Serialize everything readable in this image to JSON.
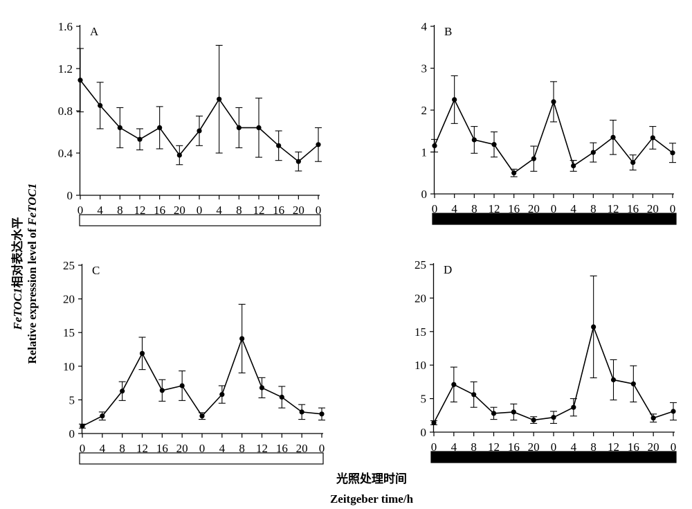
{
  "figure": {
    "ylabel_line1_italic": "FeTOC1",
    "ylabel_line1_cn": "相对表达水平",
    "ylabel_line2_prefix": "Relative expression level of ",
    "ylabel_line2_italic": "FeTOC1",
    "xlabel_cn": "光照处理时间",
    "xlabel_en": "Zeitgeber time/h"
  },
  "chart_data": [
    {
      "type": "line",
      "panel": "A",
      "x": [
        "0",
        "4",
        "8",
        "12",
        "16",
        "20",
        "0",
        "4",
        "8",
        "12",
        "16",
        "20",
        "0"
      ],
      "values": [
        1.09,
        0.85,
        0.64,
        0.53,
        0.64,
        0.38,
        0.61,
        0.91,
        0.64,
        0.64,
        0.47,
        0.32,
        0.48
      ],
      "error": [
        0.3,
        0.22,
        0.19,
        0.1,
        0.2,
        0.09,
        0.14,
        0.51,
        0.19,
        0.28,
        0.14,
        0.09,
        0.16
      ],
      "yticks": [
        "0",
        "0.4",
        "0.8",
        "1.2",
        "1.6"
      ],
      "ylim": [
        0,
        1.6
      ],
      "light_bar": "white"
    },
    {
      "type": "line",
      "panel": "B",
      "x": [
        "0",
        "4",
        "8",
        "12",
        "16",
        "20",
        "0",
        "4",
        "8",
        "12",
        "16",
        "20",
        "0"
      ],
      "values": [
        1.15,
        2.25,
        1.29,
        1.18,
        0.5,
        0.84,
        2.2,
        0.67,
        0.99,
        1.35,
        0.75,
        1.34,
        0.98
      ],
      "error": [
        0.15,
        0.57,
        0.32,
        0.3,
        0.09,
        0.3,
        0.48,
        0.13,
        0.23,
        0.41,
        0.18,
        0.27,
        0.23
      ],
      "yticks": [
        "0",
        "1",
        "2",
        "3",
        "4"
      ],
      "ylim": [
        0,
        4
      ],
      "light_bar": "black"
    },
    {
      "type": "line",
      "panel": "C",
      "x": [
        "0",
        "4",
        "8",
        "12",
        "16",
        "20",
        "0",
        "4",
        "8",
        "12",
        "16",
        "20",
        "0"
      ],
      "values": [
        1.1,
        2.6,
        6.3,
        11.9,
        6.4,
        7.1,
        2.6,
        5.8,
        14.1,
        6.8,
        5.4,
        3.2,
        2.9
      ],
      "error": [
        0.3,
        0.6,
        1.4,
        2.4,
        1.6,
        2.2,
        0.5,
        1.3,
        5.1,
        1.5,
        1.6,
        1.1,
        0.9
      ],
      "yticks": [
        "0",
        "5",
        "10",
        "15",
        "20",
        "25"
      ],
      "ylim": [
        0,
        25
      ],
      "light_bar": "white"
    },
    {
      "type": "line",
      "panel": "D",
      "x": [
        "0",
        "4",
        "8",
        "12",
        "16",
        "20",
        "0",
        "4",
        "8",
        "12",
        "16",
        "20",
        "0"
      ],
      "values": [
        1.4,
        7.1,
        5.6,
        2.8,
        3.0,
        1.8,
        2.2,
        3.7,
        15.7,
        7.8,
        7.2,
        2.1,
        3.1
      ],
      "error": [
        0.3,
        2.6,
        1.9,
        0.9,
        1.2,
        0.5,
        0.9,
        1.3,
        7.6,
        3.0,
        2.7,
        0.6,
        1.3
      ],
      "yticks": [
        "0",
        "5",
        "10",
        "15",
        "20",
        "25"
      ],
      "ylim": [
        0,
        25
      ],
      "light_bar": "black"
    }
  ]
}
